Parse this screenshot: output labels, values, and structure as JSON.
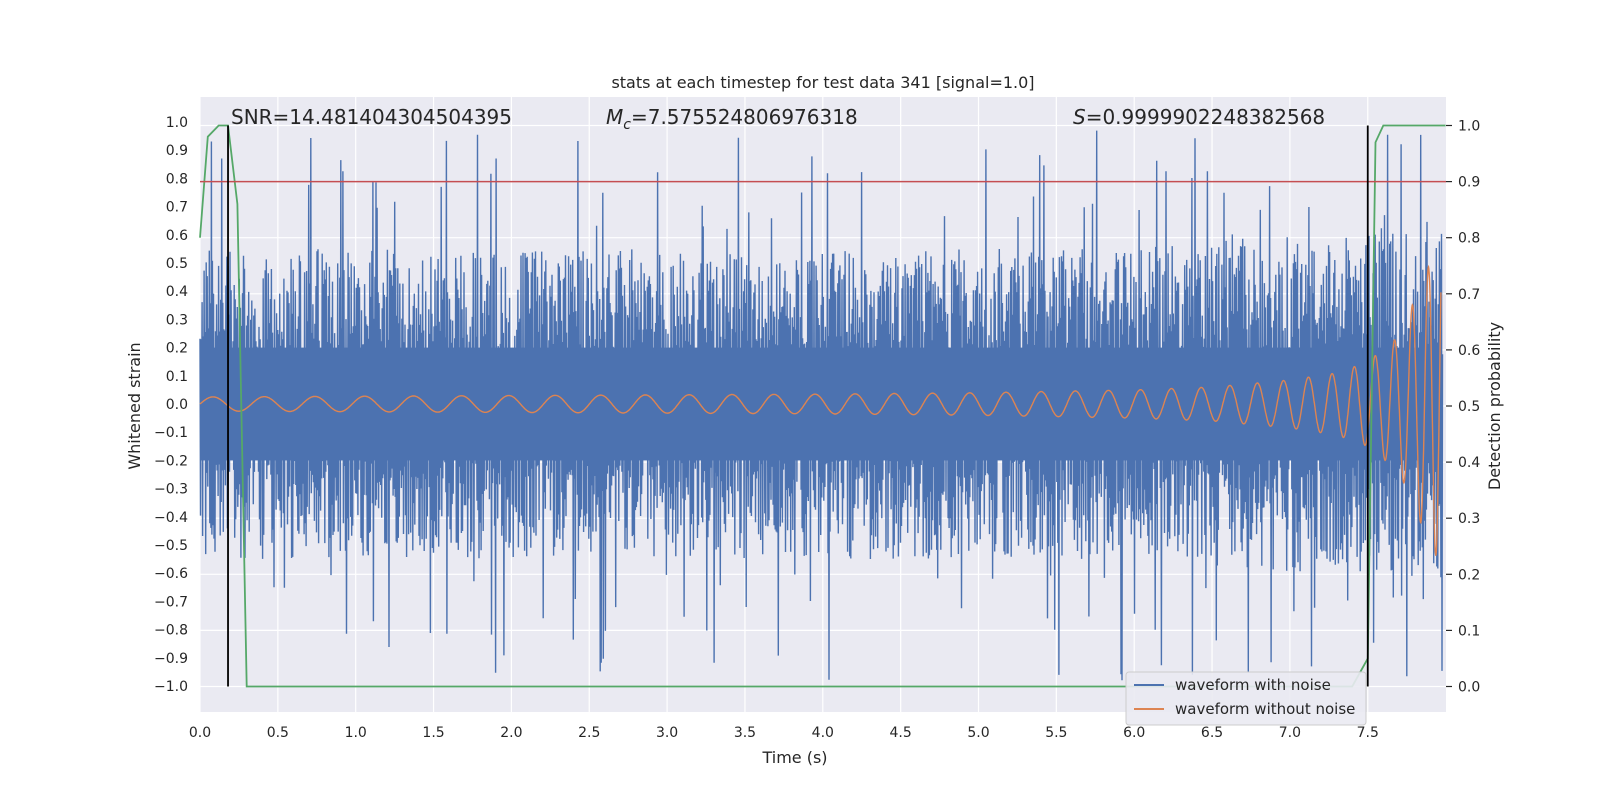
{
  "chart_data": {
    "type": "line",
    "title": "stats at each timestep for test data 341 [signal=1.0]",
    "xlabel": "Time (s)",
    "ylabel": "Whitened strain",
    "y2label": "Detection probability",
    "xlim": [
      0.0,
      8.0
    ],
    "ylim": [
      -1.1,
      1.1
    ],
    "y2lim": [
      -0.05,
      1.05
    ],
    "x_ticks": [
      "0.0",
      "0.5",
      "1.0",
      "1.5",
      "2.0",
      "2.5",
      "3.0",
      "3.5",
      "4.0",
      "4.5",
      "5.0",
      "5.5",
      "6.0",
      "6.5",
      "7.0",
      "7.5"
    ],
    "y_ticks": [
      "1.0",
      "0.9",
      "0.8",
      "0.7",
      "0.6",
      "0.5",
      "0.4",
      "0.3",
      "0.2",
      "0.1",
      "0.0",
      "−0.1",
      "−0.2",
      "−0.3",
      "−0.4",
      "−0.5",
      "−0.6",
      "−0.7",
      "−0.8",
      "−0.9",
      "−1.0"
    ],
    "y2_ticks": [
      "1.0",
      "0.9",
      "0.8",
      "0.7",
      "0.6",
      "0.5",
      "0.4",
      "0.3",
      "0.2",
      "0.1",
      "0.0"
    ],
    "grid": true,
    "legend_position": "lower-right",
    "annotations": {
      "snr": "SNR=14.481404304504395",
      "mc_symbol": "M",
      "mc_sub": "c",
      "mc_value": "=7.575524806976318",
      "s_symbol": "S",
      "s_value": "=0.9999902248382568"
    },
    "threshold_line": {
      "y2": 0.9,
      "color": "#c44e52"
    },
    "vertical_lines": [
      0.18,
      7.5
    ],
    "series": [
      {
        "name": "waveform with noise",
        "color": "#4c72b0",
        "envelope": {
          "x": [
            0.0,
            1.0,
            2.0,
            3.0,
            4.0,
            5.0,
            6.0,
            6.5,
            7.0,
            7.3,
            7.5,
            7.7,
            8.0
          ],
          "typical_amplitude": [
            0.55,
            0.55,
            0.55,
            0.55,
            0.55,
            0.55,
            0.55,
            0.58,
            0.6,
            0.6,
            0.6,
            0.62,
            0.65
          ],
          "peak_amplitude": [
            0.98,
            0.98,
            0.98,
            0.98,
            0.98,
            0.98,
            0.98,
            0.98,
            0.98,
            0.98,
            0.98,
            0.98,
            0.98
          ]
        }
      },
      {
        "name": "waveform without noise",
        "color": "#dd8452",
        "envelope": {
          "x": [
            0.0,
            2.0,
            4.0,
            5.0,
            6.0,
            6.5,
            7.0,
            7.3,
            7.5,
            7.7,
            7.9,
            8.0
          ],
          "amplitude": [
            0.025,
            0.03,
            0.035,
            0.04,
            0.05,
            0.06,
            0.085,
            0.11,
            0.15,
            0.24,
            0.5,
            0.6
          ]
        }
      },
      {
        "name": "detection probability",
        "color": "#55a868",
        "axis": "right",
        "x": [
          0.0,
          0.05,
          0.12,
          0.18,
          0.24,
          0.3,
          0.31,
          3.9,
          4.0,
          7.4,
          7.5,
          7.55,
          7.6,
          8.0
        ],
        "values": [
          0.8,
          0.98,
          1.0,
          1.0,
          0.86,
          0.0,
          0.0,
          0.0,
          0.0,
          0.0,
          0.05,
          0.97,
          1.0,
          1.0
        ]
      }
    ]
  }
}
